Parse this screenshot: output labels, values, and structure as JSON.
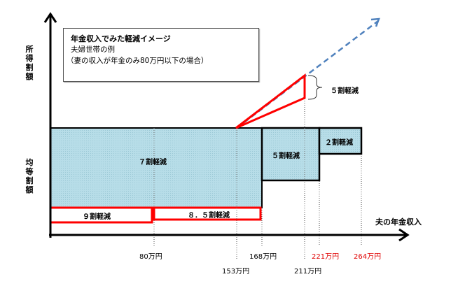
{
  "title_box": {
    "title": "年金収入でみた軽減イメージ",
    "line1": "夫婦世帯の例",
    "line2": "（妻の収入が年金のみ80万円以下の場合）"
  },
  "y_axis": {
    "upper_label": "所得割額",
    "lower_label": "均等割額"
  },
  "x_axis": {
    "label": "夫の年金収入"
  },
  "regions": {
    "r70": "７割軽減",
    "r50": "５割軽減",
    "r20": "２割軽減",
    "r90": "９割軽減",
    "r85": "８．５割軽減",
    "income_r50": "５割軽減"
  },
  "ticks": [
    {
      "label": "80万円",
      "color": "#000000"
    },
    {
      "label": "153万円",
      "color": "#000000"
    },
    {
      "label": "168万円",
      "color": "#000000"
    },
    {
      "label": "211万円",
      "color": "#000000"
    },
    {
      "label": "221万円",
      "color": "#e00000"
    },
    {
      "label": "264万円",
      "color": "#e00000"
    }
  ],
  "colors": {
    "fill": "#b7dde8",
    "highlight": "#ff0000",
    "trend": "#4f81bd"
  }
}
